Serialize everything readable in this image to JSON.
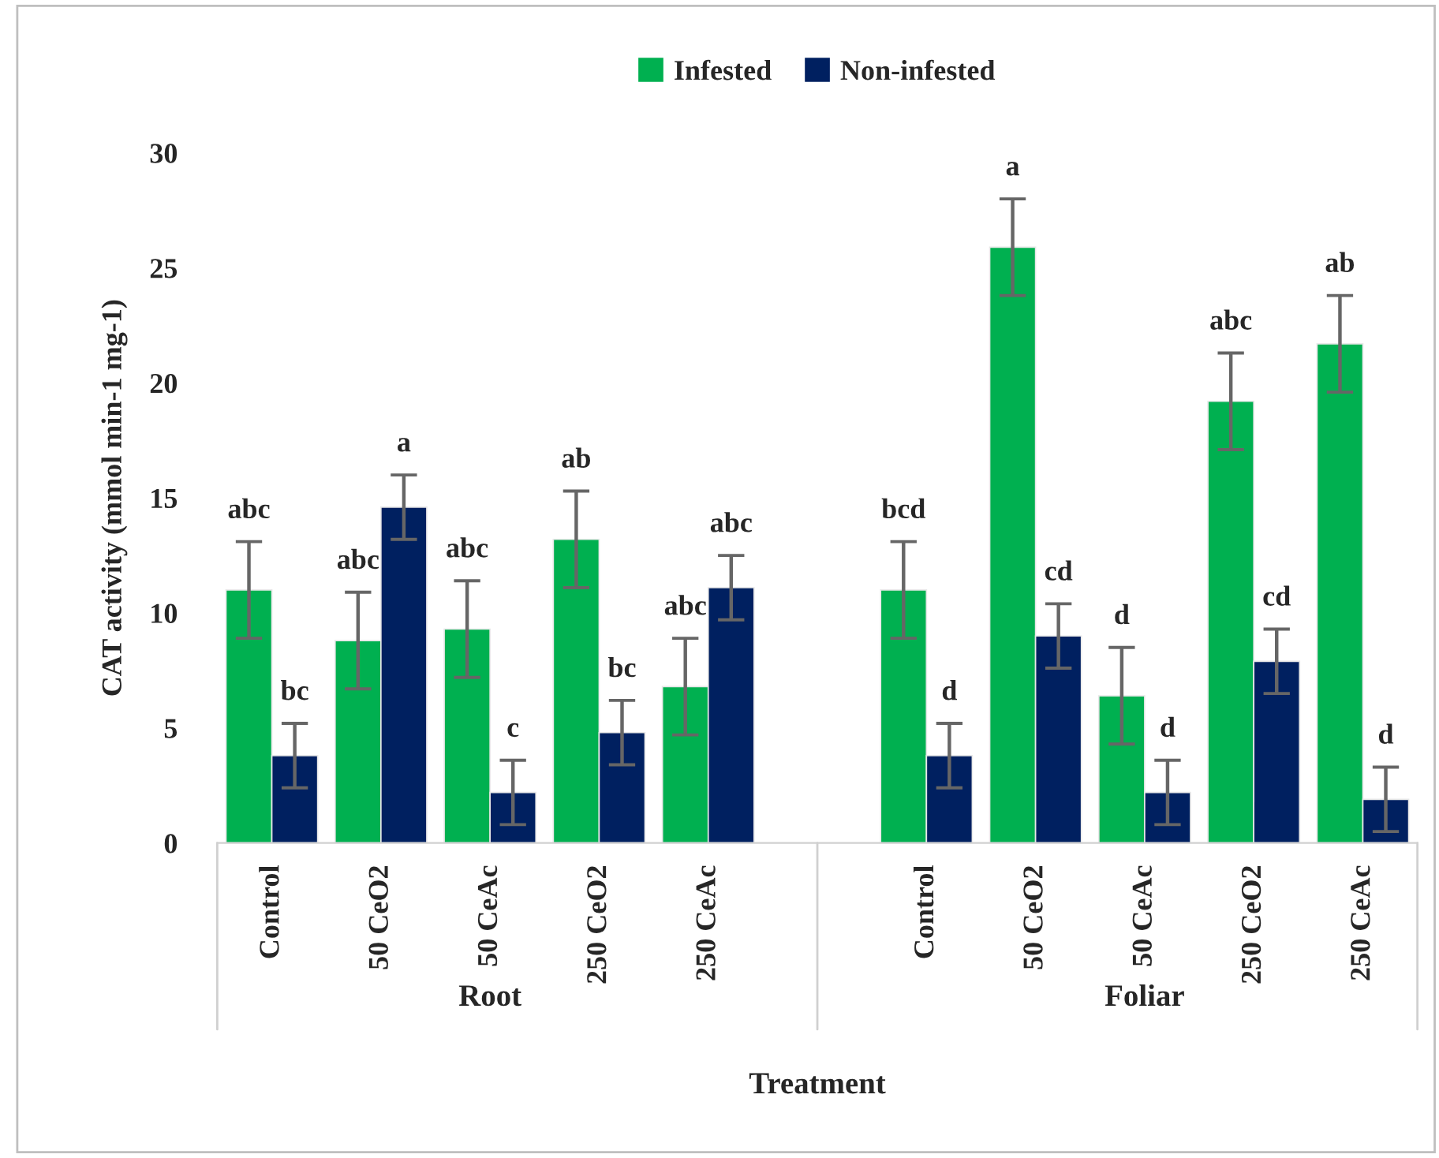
{
  "chart_data": {
    "type": "bar",
    "xlabel": "Treatment",
    "ylabel": "CAT activity (mmol min-1 mg-1)",
    "categories": [
      "Control",
      "50 CeO2",
      "50 CeAc",
      "250 CeO2",
      "250 CeAc",
      null,
      "Control",
      "50 CeO2",
      "50 CeAc",
      "250 CeO2",
      "250 CeAc"
    ],
    "series": [
      {
        "name": "Infested",
        "color": "#00b050",
        "values": [
          11.0,
          8.8,
          9.3,
          13.2,
          6.8,
          null,
          11.0,
          25.9,
          6.4,
          19.2,
          21.7
        ],
        "errors": [
          2.1,
          2.1,
          2.1,
          2.1,
          2.1,
          null,
          2.1,
          2.1,
          2.1,
          2.1,
          2.1
        ],
        "value_labels": [
          "abc",
          "abc",
          "abc",
          "ab",
          "abc",
          null,
          "bcd",
          "a",
          "d",
          "abc",
          "ab"
        ]
      },
      {
        "name": "Non-infested",
        "color": "#002060",
        "values": [
          3.8,
          14.6,
          2.2,
          4.8,
          11.1,
          null,
          3.8,
          9.0,
          2.2,
          7.9,
          1.9
        ],
        "errors": [
          1.4,
          1.4,
          1.4,
          1.4,
          1.4,
          null,
          1.4,
          1.4,
          1.4,
          1.4,
          1.4
        ],
        "value_labels": [
          "bc",
          "a",
          "c",
          "bc",
          "abc",
          null,
          "d",
          "cd",
          "d",
          "cd",
          "d"
        ]
      }
    ],
    "ylim": [
      0,
      30
    ],
    "yticks": [
      0,
      5,
      10,
      15,
      20,
      25,
      30
    ],
    "annotations": [
      "Root",
      "Foliar"
    ],
    "legend": "top",
    "grid": false
  }
}
